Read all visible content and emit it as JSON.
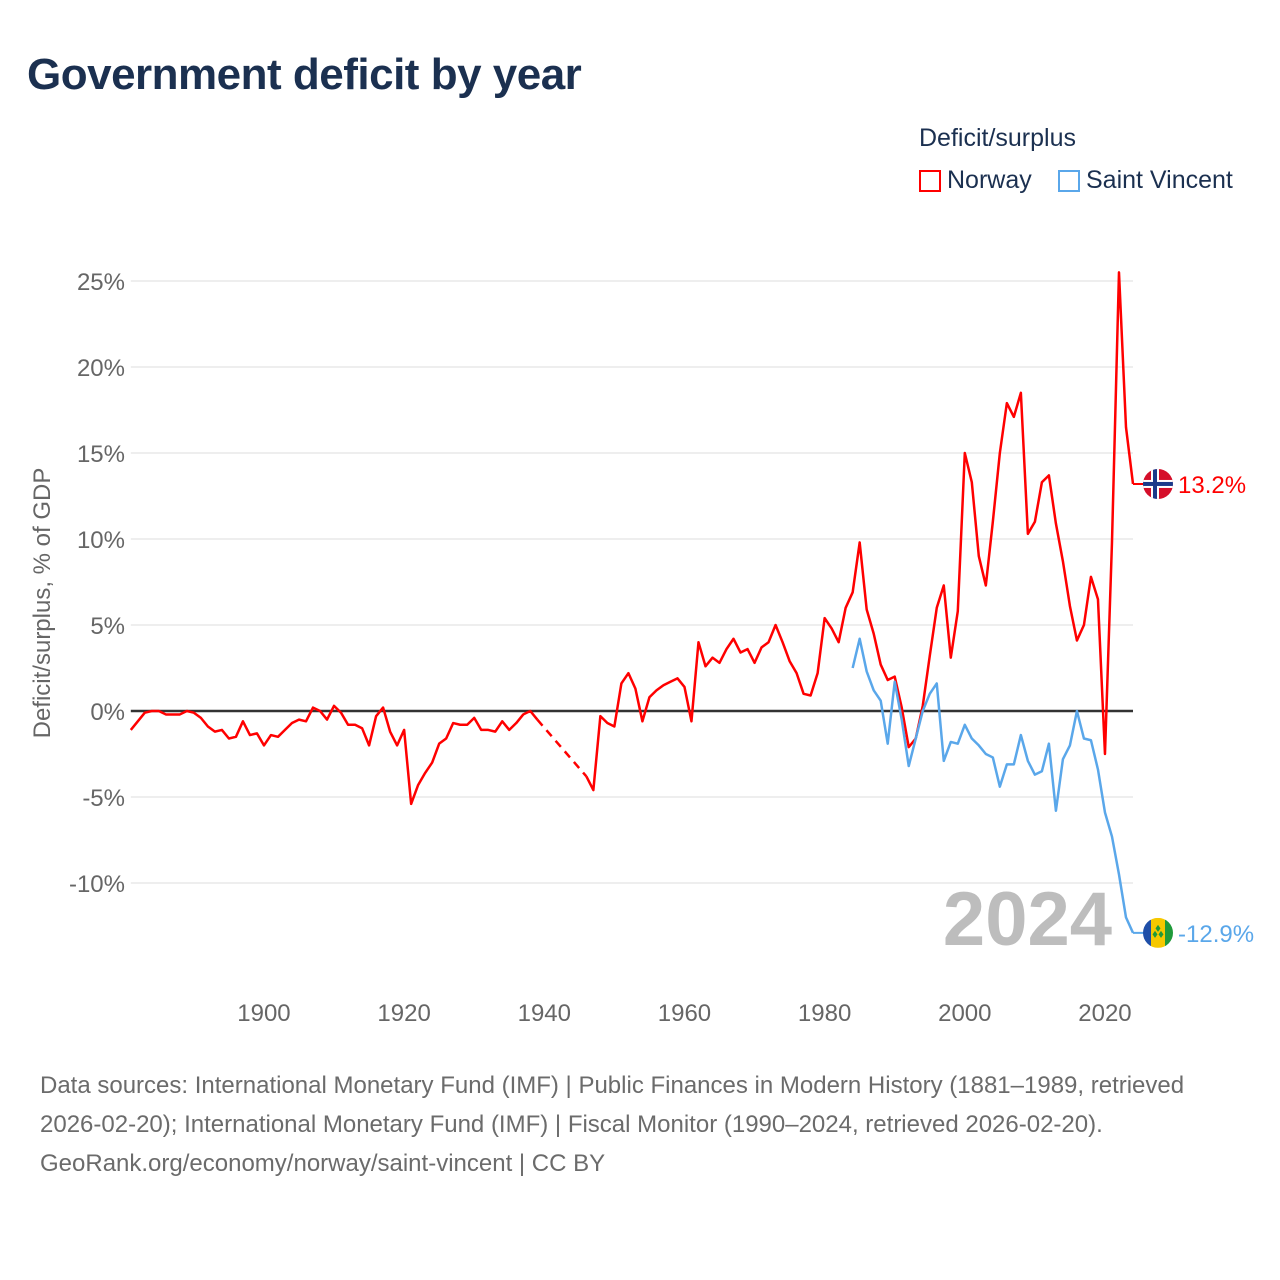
{
  "title": "Government deficit by year",
  "legend": {
    "title": "Deficit/surplus",
    "items": [
      {
        "name": "Norway",
        "color": "#ff0000"
      },
      {
        "name": "Saint Vincent",
        "color": "#5aa7ea"
      }
    ]
  },
  "footer": {
    "sources": "Data sources: International Monetary Fund (IMF) | Public Finances in Modern History (1881–1989, retrieved 2026-02-20); International Monetary Fund (IMF) | Fiscal Monitor (1990–2024, retrieved 2026-02-20).",
    "link": "GeoRank.org/economy/norway/saint-vincent | CC BY"
  },
  "chart_data": {
    "type": "line",
    "title": "Government deficit by year",
    "ylabel": "Deficit/surplus, % of GDP",
    "xlabel": "",
    "year_watermark": "2024",
    "xlim": [
      1881,
      2024
    ],
    "ylim": [
      -13.5,
      26
    ],
    "xticks": [
      1900,
      1920,
      1940,
      1960,
      1980,
      2000,
      2020
    ],
    "yticks": [
      -10,
      -5,
      0,
      5,
      10,
      15,
      20,
      25
    ],
    "ytick_labels": [
      "-10%",
      "-5%",
      "0%",
      "5%",
      "10%",
      "15%",
      "20%",
      "25%"
    ],
    "grid": true,
    "legend_position": "top-right",
    "series": [
      {
        "name": "Norway",
        "color": "#ff0000",
        "end_label": "13.2%",
        "start": 1881,
        "values": [
          -1.1,
          -0.6,
          -0.1,
          0.0,
          0.0,
          -0.2,
          -0.2,
          -0.2,
          0.0,
          -0.1,
          -0.4,
          -0.9,
          -1.2,
          -1.1,
          -1.6,
          -1.5,
          -0.6,
          -1.4,
          -1.3,
          -2.0,
          -1.4,
          -1.5,
          -1.1,
          -0.7,
          -0.5,
          -0.6,
          0.2,
          0.0,
          -0.5,
          0.3,
          -0.1,
          -0.8,
          -0.8,
          -1.0,
          -2.0,
          -0.3,
          0.2,
          -1.2,
          -2.0,
          -1.1,
          -5.4,
          -4.3,
          -3.6,
          -3.0,
          -1.9,
          -1.6,
          -0.7,
          -0.8,
          -0.8,
          -0.4,
          -1.1,
          -1.1,
          -1.2,
          -0.6,
          -1.1,
          -0.7,
          -0.2,
          0.0,
          -0.5,
          null,
          null,
          null,
          null,
          null,
          null,
          -3.8,
          -4.6,
          -0.3,
          -0.7,
          -0.9,
          1.6,
          2.2,
          1.3,
          -0.6,
          0.8,
          1.2,
          1.5,
          1.7,
          1.9,
          1.4,
          -0.6,
          4.0,
          2.6,
          3.1,
          2.8,
          3.6,
          4.2,
          3.4,
          3.6,
          2.8,
          3.7,
          4.0,
          5.0,
          4.0,
          2.9,
          2.2,
          1.0,
          0.9,
          2.2,
          5.4,
          4.8,
          4.0,
          6.0,
          6.9,
          9.8,
          5.9,
          4.5,
          2.7,
          1.8,
          2.0,
          0.2,
          -2.1,
          -1.6,
          0.3,
          3.2,
          6.0,
          7.3,
          3.1,
          5.8,
          15.0,
          13.3,
          9.0,
          7.3,
          11.0,
          15.0,
          17.9,
          17.1,
          18.5,
          10.3,
          11.0,
          13.3,
          13.7,
          10.9,
          8.7,
          6.1,
          4.1,
          5.0,
          7.8,
          6.5,
          -2.5,
          9.8,
          25.5,
          16.5,
          13.2
        ]
      },
      {
        "name": "Saint Vincent",
        "color": "#5aa7ea",
        "end_label": "-12.9%",
        "start": 1984,
        "values": [
          2.5,
          4.2,
          2.3,
          1.2,
          0.6,
          -1.9,
          1.7,
          -0.5,
          -3.2,
          -1.6,
          0.0,
          1.0,
          1.6,
          -2.9,
          -1.8,
          -1.9,
          -0.8,
          -1.6,
          -2.0,
          -2.5,
          -2.7,
          -4.4,
          -3.1,
          -3.1,
          -1.4,
          -2.9,
          -3.7,
          -3.5,
          -1.9,
          -5.8,
          -2.8,
          -2.0,
          0.0,
          -1.6,
          -1.7,
          -3.4,
          -5.9,
          -7.3,
          -9.5,
          -12.0,
          -12.9
        ]
      }
    ]
  }
}
